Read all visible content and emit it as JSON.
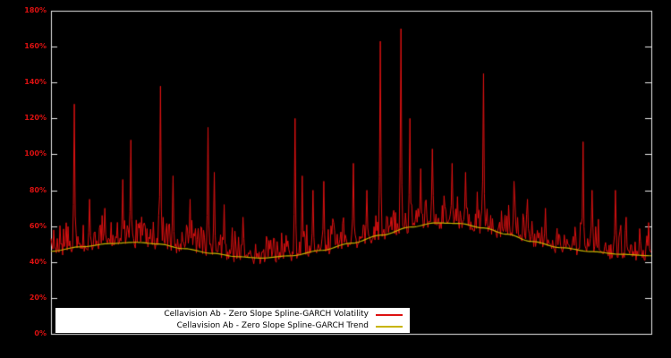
{
  "window": {
    "background": "#000000"
  },
  "axis": {
    "tick_label_color": "#dd1111",
    "border_color": "#e8e8e8"
  },
  "legend": {
    "background": "#ffffff",
    "text_color": "#000000"
  },
  "chart_data": {
    "type": "line",
    "title": "",
    "xlabel": "",
    "ylabel": "",
    "ylim": [
      0,
      180
    ],
    "y_ticks": [
      "0%",
      "20%",
      "40%",
      "60%",
      "80%",
      "100%",
      "120%",
      "140%",
      "160%",
      "180%"
    ],
    "x_ticks": [],
    "grid": false,
    "legend_position": "bottom-center",
    "series": [
      {
        "name": "Cellavision Ab - Zero Slope Spline-GARCH Volatility",
        "color": "#dd1111",
        "style": "noisy"
      },
      {
        "name": "Cellavision Ab - Zero Slope Spline-GARCH Trend",
        "color": "#c8b400",
        "style": "smooth"
      }
    ],
    "trend_points": [
      [
        0.0,
        46.0
      ],
      [
        0.05,
        48.5
      ],
      [
        0.1,
        50.3
      ],
      [
        0.14,
        51.0
      ],
      [
        0.18,
        50.0
      ],
      [
        0.22,
        47.5
      ],
      [
        0.27,
        44.8
      ],
      [
        0.31,
        43.0
      ],
      [
        0.35,
        42.2
      ],
      [
        0.4,
        43.5
      ],
      [
        0.45,
        46.5
      ],
      [
        0.5,
        50.5
      ],
      [
        0.55,
        55.0
      ],
      [
        0.6,
        59.5
      ],
      [
        0.64,
        61.8
      ],
      [
        0.68,
        61.5
      ],
      [
        0.72,
        59.0
      ],
      [
        0.76,
        55.5
      ],
      [
        0.8,
        51.5
      ],
      [
        0.85,
        48.0
      ],
      [
        0.9,
        45.8
      ],
      [
        0.95,
        44.3
      ],
      [
        1.0,
        43.5
      ]
    ],
    "spikes": [
      [
        0.039,
        128
      ],
      [
        0.064,
        75
      ],
      [
        0.09,
        70
      ],
      [
        0.12,
        86
      ],
      [
        0.133,
        108
      ],
      [
        0.183,
        138
      ],
      [
        0.203,
        88
      ],
      [
        0.231,
        75
      ],
      [
        0.261,
        115
      ],
      [
        0.272,
        90
      ],
      [
        0.288,
        72
      ],
      [
        0.32,
        65
      ],
      [
        0.407,
        120
      ],
      [
        0.418,
        88
      ],
      [
        0.437,
        80
      ],
      [
        0.455,
        85
      ],
      [
        0.504,
        95
      ],
      [
        0.526,
        80
      ],
      [
        0.549,
        163
      ],
      [
        0.583,
        170
      ],
      [
        0.598,
        120
      ],
      [
        0.616,
        92
      ],
      [
        0.635,
        103
      ],
      [
        0.668,
        95
      ],
      [
        0.69,
        90
      ],
      [
        0.72,
        145
      ],
      [
        0.772,
        85
      ],
      [
        0.794,
        75
      ],
      [
        0.824,
        70
      ],
      [
        0.887,
        107
      ],
      [
        0.901,
        80
      ],
      [
        0.94,
        80
      ],
      [
        0.958,
        65
      ],
      [
        0.995,
        62
      ]
    ],
    "noise": {
      "seed": 987654321,
      "base_jitter": 7,
      "spike_jitter": 16,
      "points": 670
    }
  }
}
